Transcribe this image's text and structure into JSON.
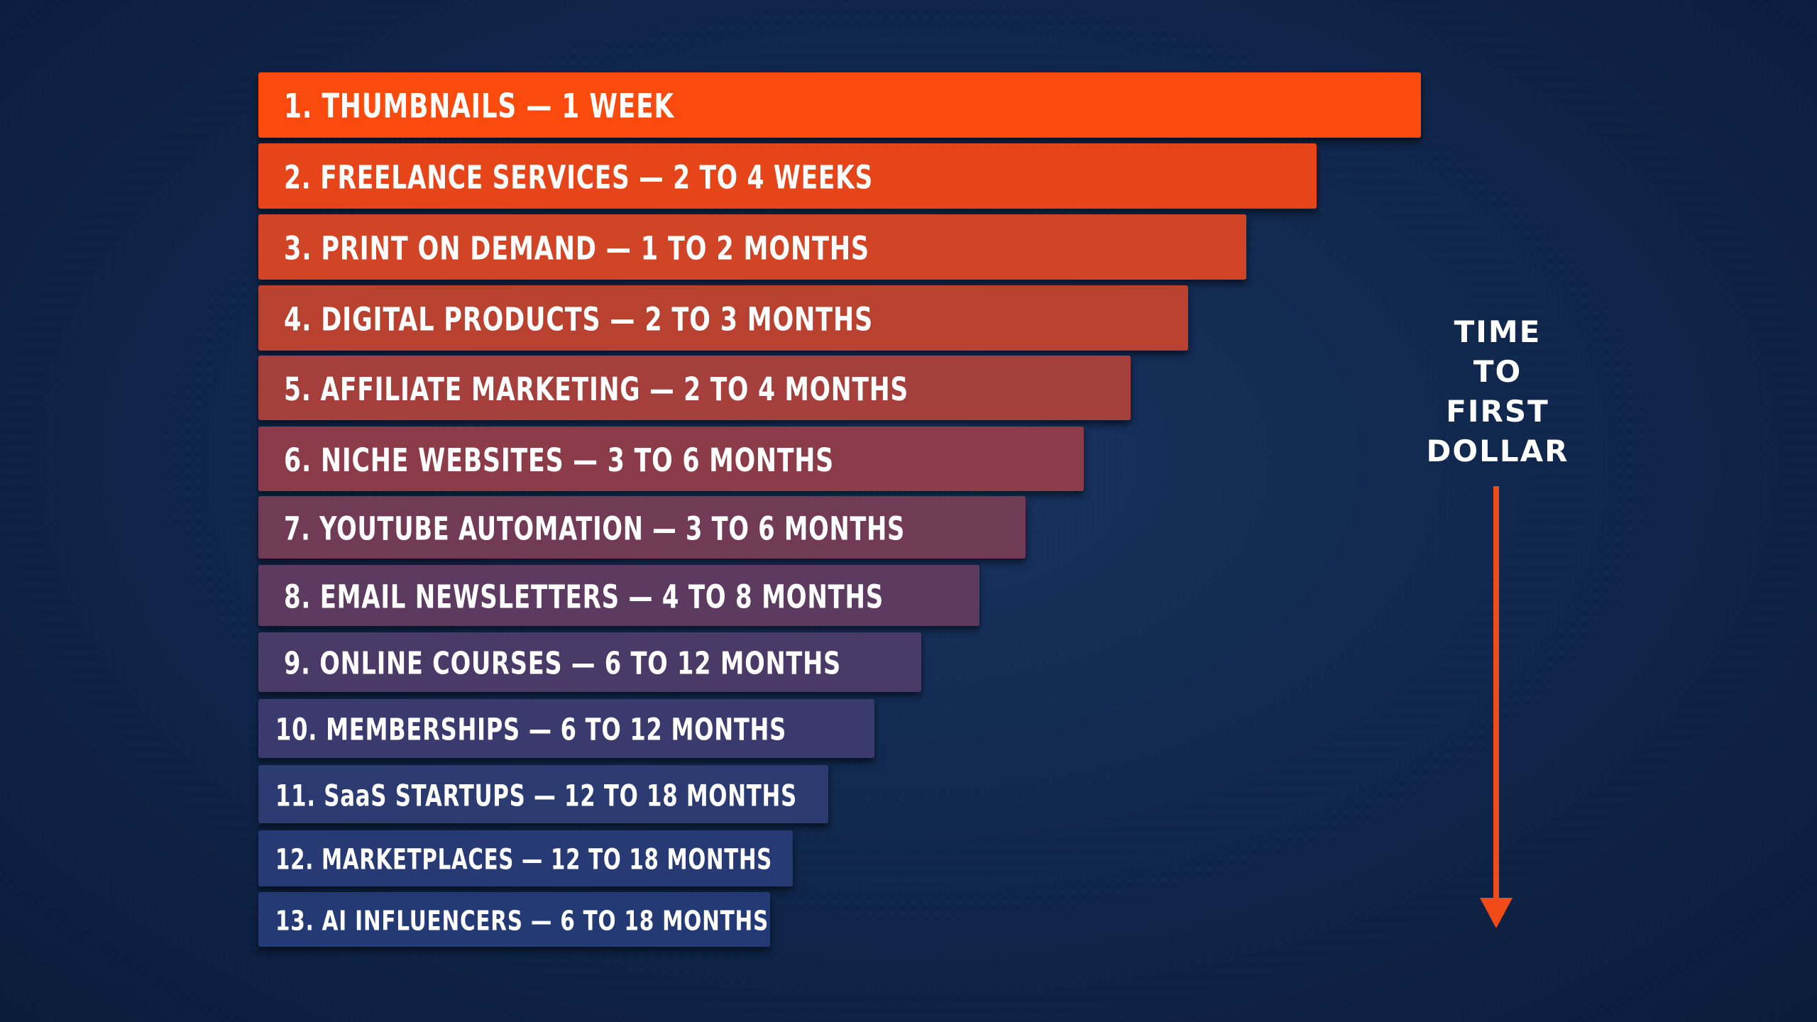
{
  "chart_data": {
    "type": "bar",
    "orientation": "horizontal",
    "categories": [
      "1. THUMBNAILS — 1 WEEK",
      "2. FREELANCE SERVICES — 2 TO 4 WEEKS",
      "3. PRINT ON DEMAND — 1 TO 2 MONTHS",
      "4. DIGITAL PRODUCTS — 2 TO 3 MONTHS",
      "5. AFFILIATE MARKETING — 2 TO 4 MONTHS",
      "6. NICHE WEBSITES — 3 TO 6 MONTHS",
      "7. YOUTUBE AUTOMATION — 3 TO 6 MONTHS",
      "8. EMAIL NEWSLETTERS — 4 TO 8 MONTHS",
      "9. ONLINE COURSES — 6 TO 12 MONTHS",
      "10. MEMBERSHIPS — 6 TO 12 MONTHS",
      "11. SaaS STARTUPS — 12 TO 18 MONTHS",
      "12. MARKETPLACES — 12 TO 18 MONTHS",
      "13. AI INFLUENCERS — 6 TO 18 MONTHS"
    ],
    "values": [
      100,
      91,
      85,
      80,
      75,
      71,
      66,
      62,
      57,
      53,
      49,
      46,
      44
    ],
    "colors": [
      "#fb4a0d",
      "#e64519",
      "#d14425",
      "#b94130",
      "#a43f3c",
      "#8c3c48",
      "#723b55",
      "#5d3a5f",
      "#4a3a68",
      "#3a3a6e",
      "#2c3a72",
      "#273a73",
      "#233a74"
    ],
    "title": "",
    "xlabel": "",
    "ylabel": "",
    "xlim": [
      0,
      100
    ],
    "grid": false,
    "legend": "none",
    "side_caption": [
      "TIME",
      "TO",
      "FIRST",
      "DOLLAR"
    ],
    "arrow_color": "#f14b1a"
  }
}
